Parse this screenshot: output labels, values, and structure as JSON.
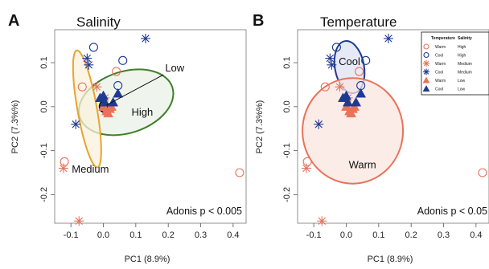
{
  "colors": {
    "warm": "#e8735a",
    "cool": "#1f3a93",
    "high_ellipse": "#3f7f2a",
    "medium_ellipse": "#e6a52e",
    "cool_ellipse": "#1f3a93",
    "warm_ellipse": "#e8735a"
  },
  "chart_data": [
    {
      "type": "scatter",
      "panel_letter": "A",
      "title": "Salinity",
      "xlabel": "PC1 (8.9%)",
      "ylabel": "PC2 (7.3%%)",
      "xlim": [
        -0.15,
        0.44
      ],
      "ylim": [
        -0.265,
        0.175
      ],
      "xticks": [
        "-0.1",
        "0.0",
        "0.1",
        "0.2",
        "0.3",
        "0.4"
      ],
      "yticks": [
        "-0.2",
        "-0.1",
        "0.0",
        "0.1"
      ],
      "annotation": "Adonis p < 0.005",
      "ellipses": [
        {
          "label": "High",
          "cx": 0.07,
          "cy": 0.01,
          "rx": 0.15,
          "ry": 0.07,
          "angle": 18,
          "color": "high_ellipse",
          "fill": "#eaf1e6",
          "label_xy": [
            0.12,
            -0.02
          ]
        },
        {
          "label": "Medium",
          "cx": -0.05,
          "cy": -0.005,
          "rx": 0.03,
          "ry": 0.135,
          "angle": 10,
          "color": "medium_ellipse",
          "fill": "#fbf0dc",
          "label_xy": [
            -0.04,
            -0.15
          ]
        },
        {
          "label": "Low",
          "cx": 0.0,
          "cy": 0.0,
          "rx": 0.012,
          "ry": 0.012,
          "angle": 0,
          "color": "#111111",
          "fill": "none",
          "label_xy": [
            0.22,
            0.08
          ],
          "leader": true
        }
      ],
      "points": [
        {
          "x": -0.12,
          "y": -0.125,
          "temp": "warm",
          "sal": "high"
        },
        {
          "x": -0.065,
          "y": 0.045,
          "temp": "warm",
          "sal": "high"
        },
        {
          "x": 0.04,
          "y": 0.08,
          "temp": "warm",
          "sal": "high"
        },
        {
          "x": 0.42,
          "y": -0.15,
          "temp": "warm",
          "sal": "high"
        },
        {
          "x": 0.06,
          "y": 0.105,
          "temp": "cool",
          "sal": "high"
        },
        {
          "x": -0.03,
          "y": 0.135,
          "temp": "cool",
          "sal": "high"
        },
        {
          "x": 0.045,
          "y": 0.048,
          "temp": "cool",
          "sal": "high"
        },
        {
          "x": -0.123,
          "y": -0.14,
          "temp": "warm",
          "sal": "medium"
        },
        {
          "x": -0.02,
          "y": 0.045,
          "temp": "warm",
          "sal": "medium"
        },
        {
          "x": -0.075,
          "y": -0.26,
          "temp": "warm",
          "sal": "medium"
        },
        {
          "x": 0.005,
          "y": 0.02,
          "temp": "warm",
          "sal": "medium"
        },
        {
          "x": 0.13,
          "y": 0.155,
          "temp": "cool",
          "sal": "medium"
        },
        {
          "x": -0.05,
          "y": 0.11,
          "temp": "cool",
          "sal": "medium"
        },
        {
          "x": -0.045,
          "y": 0.095,
          "temp": "cool",
          "sal": "medium"
        },
        {
          "x": -0.085,
          "y": -0.04,
          "temp": "cool",
          "sal": "medium"
        },
        {
          "x": 0.0,
          "y": 0.0,
          "temp": "warm",
          "sal": "low"
        },
        {
          "x": 0.01,
          "y": -0.01,
          "temp": "warm",
          "sal": "low"
        },
        {
          "x": 0.02,
          "y": -0.005,
          "temp": "warm",
          "sal": "low"
        },
        {
          "x": 0.015,
          "y": -0.015,
          "temp": "warm",
          "sal": "low"
        },
        {
          "x": 0.025,
          "y": 0.0,
          "temp": "warm",
          "sal": "low"
        },
        {
          "x": -0.01,
          "y": 0.02,
          "temp": "cool",
          "sal": "low"
        },
        {
          "x": 0.0,
          "y": 0.025,
          "temp": "cool",
          "sal": "low"
        },
        {
          "x": 0.03,
          "y": 0.01,
          "temp": "cool",
          "sal": "low"
        },
        {
          "x": 0.045,
          "y": 0.03,
          "temp": "cool",
          "sal": "low"
        },
        {
          "x": 0.005,
          "y": 0.01,
          "temp": "cool",
          "sal": "low"
        }
      ]
    },
    {
      "type": "scatter",
      "panel_letter": "B",
      "title": "Temperature",
      "xlabel": "PC1 (8.9%)",
      "ylabel": "PC2 (7.3%%)",
      "xlim": [
        -0.15,
        0.44
      ],
      "ylim": [
        -0.265,
        0.175
      ],
      "xticks": [
        "-0.1",
        "0.0",
        "0.1",
        "0.2",
        "0.3",
        "0.4"
      ],
      "yticks": [
        "-0.2",
        "-0.1",
        "0.0",
        "0.1"
      ],
      "annotation": "Adonis p < 0.05",
      "ellipses": [
        {
          "label": "Cool",
          "cx": 0.01,
          "cy": 0.09,
          "rx": 0.045,
          "ry": 0.06,
          "angle": 10,
          "color": "cool_ellipse",
          "fill": "#dde3f4",
          "label_xy": [
            0.01,
            0.095
          ]
        },
        {
          "label": "Warm",
          "cx": 0.02,
          "cy": -0.055,
          "rx": 0.155,
          "ry": 0.12,
          "angle": 0,
          "color": "warm_ellipse",
          "fill": "#fbe5e0",
          "label_xy": [
            0.05,
            -0.14
          ]
        }
      ],
      "points": [
        {
          "x": -0.12,
          "y": -0.125,
          "temp": "warm",
          "sal": "high"
        },
        {
          "x": -0.065,
          "y": 0.045,
          "temp": "warm",
          "sal": "high"
        },
        {
          "x": 0.04,
          "y": 0.08,
          "temp": "warm",
          "sal": "high"
        },
        {
          "x": 0.42,
          "y": -0.15,
          "temp": "warm",
          "sal": "high"
        },
        {
          "x": 0.06,
          "y": 0.105,
          "temp": "cool",
          "sal": "high"
        },
        {
          "x": -0.03,
          "y": 0.135,
          "temp": "cool",
          "sal": "high"
        },
        {
          "x": 0.045,
          "y": 0.048,
          "temp": "cool",
          "sal": "high"
        },
        {
          "x": -0.123,
          "y": -0.14,
          "temp": "warm",
          "sal": "medium"
        },
        {
          "x": -0.02,
          "y": 0.045,
          "temp": "warm",
          "sal": "medium"
        },
        {
          "x": -0.075,
          "y": -0.26,
          "temp": "warm",
          "sal": "medium"
        },
        {
          "x": 0.005,
          "y": 0.02,
          "temp": "warm",
          "sal": "medium"
        },
        {
          "x": 0.13,
          "y": 0.155,
          "temp": "cool",
          "sal": "medium"
        },
        {
          "x": -0.05,
          "y": 0.11,
          "temp": "cool",
          "sal": "medium"
        },
        {
          "x": -0.045,
          "y": 0.095,
          "temp": "cool",
          "sal": "medium"
        },
        {
          "x": -0.085,
          "y": -0.04,
          "temp": "cool",
          "sal": "medium"
        },
        {
          "x": 0.0,
          "y": 0.0,
          "temp": "warm",
          "sal": "low"
        },
        {
          "x": 0.01,
          "y": -0.01,
          "temp": "warm",
          "sal": "low"
        },
        {
          "x": 0.02,
          "y": -0.005,
          "temp": "warm",
          "sal": "low"
        },
        {
          "x": 0.015,
          "y": -0.015,
          "temp": "warm",
          "sal": "low"
        },
        {
          "x": 0.025,
          "y": 0.0,
          "temp": "warm",
          "sal": "low"
        },
        {
          "x": -0.01,
          "y": 0.02,
          "temp": "cool",
          "sal": "low"
        },
        {
          "x": 0.0,
          "y": 0.025,
          "temp": "cool",
          "sal": "low"
        },
        {
          "x": 0.03,
          "y": 0.01,
          "temp": "cool",
          "sal": "low"
        },
        {
          "x": 0.045,
          "y": 0.03,
          "temp": "cool",
          "sal": "low"
        },
        {
          "x": 0.005,
          "y": 0.01,
          "temp": "cool",
          "sal": "low"
        }
      ],
      "legend": {
        "placement": "top-right",
        "headers": [
          "Temperature",
          "Salinity"
        ],
        "entries": [
          {
            "temp": "Warm",
            "sal": "High",
            "temp_key": "warm",
            "sal_key": "high"
          },
          {
            "temp": "Cool",
            "sal": "High",
            "temp_key": "cool",
            "sal_key": "high"
          },
          {
            "temp": "Warm",
            "sal": "Medium",
            "temp_key": "warm",
            "sal_key": "medium"
          },
          {
            "temp": "Cool",
            "sal": "Medium",
            "temp_key": "cool",
            "sal_key": "medium"
          },
          {
            "temp": "Warm",
            "sal": "Low",
            "temp_key": "warm",
            "sal_key": "low"
          },
          {
            "temp": "Cool",
            "sal": "Low",
            "temp_key": "cool",
            "sal_key": "low"
          }
        ]
      }
    }
  ]
}
